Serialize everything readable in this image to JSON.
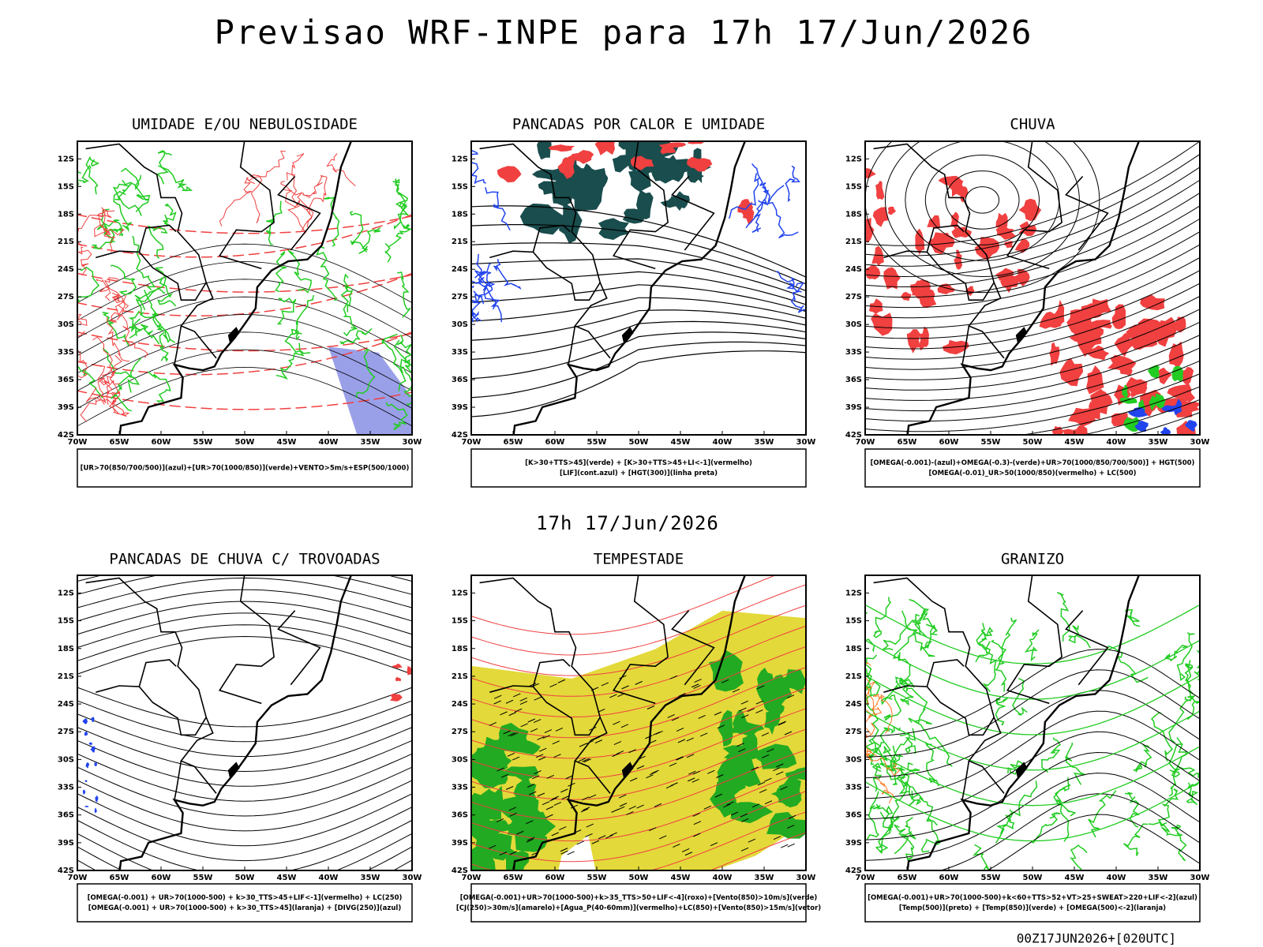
{
  "title": "Previsao WRF-INPE  para 17h 17/Jun/2026",
  "subtitle": "17h 17/Jun/2026",
  "footer": "00Z17JUN2026+[020UTC]",
  "lat_ticks": [
    "12S",
    "15S",
    "18S",
    "21S",
    "24S",
    "27S",
    "30S",
    "33S",
    "36S",
    "39S",
    "42S"
  ],
  "lon_ticks": [
    "70W",
    "65W",
    "60W",
    "55W",
    "50W",
    "45W",
    "40W",
    "35W",
    "30W"
  ],
  "panels": [
    {
      "title": "UMIDADE E/OU NEBULOSIDADE",
      "legend": [
        "[UR>70(850/700/500)](azul)+[UR>70(1000/850)](verde)+VENTO>5m/s+ESP(500/1000)"
      ]
    },
    {
      "title": "PANCADAS POR CALOR E UMIDADE",
      "legend": [
        "[K>30+TTS>45](verde) + [K>30+TTS>45+LI<-1](vermelho)",
        "[LIF](cont.azul) + [HGT(300)](linha preta)"
      ]
    },
    {
      "title": "CHUVA",
      "legend": [
        "[OMEGA(-0.001)-(azul)+OMEGA(-0.3)-(verde)+UR>70(1000/850/700/500)] + HGT(500)",
        "[OMEGA(-0.01)_UR>50(1000/850)(vermelho) + LC(500)"
      ]
    },
    {
      "title": "PANCADAS DE CHUVA C/ TROVOADAS",
      "legend": [
        "[OMEGA(-0.001) + UR>70(1000-500) + k>30_TTS>45+LIF<-1](vermelho) + LC(250)",
        "[OMEGA(-0.001) + UR>70(1000-500) + k>30_TTS>45](laranja) + [DIVG(250)](azul)"
      ]
    },
    {
      "title": "TEMPESTADE",
      "legend": [
        "[OMEGA(-0.001)+UR>70(1000-500)+k>35_TTS>50+LIF<-4](roxo)+[Vento(850)>10m/s](verde)",
        "[CJ(250)>30m/s](amarelo)+[Agua_P(40-60mm)](vermelho)+LC(850)+[Vento(850)>15m/s](vetor)"
      ]
    },
    {
      "title": "GRANIZO",
      "legend": [
        "[OMEGA(-0.001)+UR>70(1000-500)+k<60+TTS>52+VT>25+SWEAT>220+LIF<-2](azul)",
        "[Temp(500)](preto) + [Temp(850)](verde) + [OMEGA(500)<-2](laranja)"
      ]
    }
  ]
}
